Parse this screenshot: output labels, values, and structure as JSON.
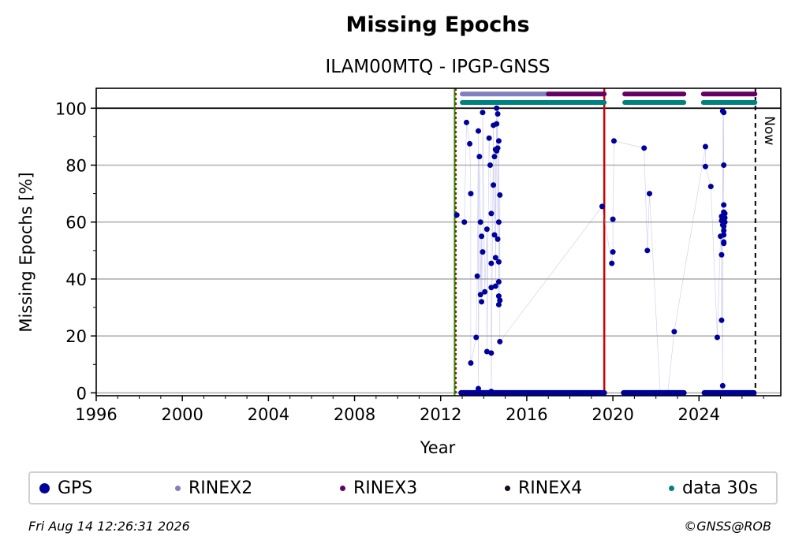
{
  "chart_data": {
    "type": "scatter",
    "title": "Missing Epochs",
    "subtitle": "ILAM00MTQ - IPGP-GNSS",
    "xlabel": "Year",
    "ylabel": "Missing Epochs [%]",
    "xlim": [
      1996,
      2027.8
    ],
    "ylim": [
      -1,
      107
    ],
    "x_ticks": [
      "1996",
      "2000",
      "2004",
      "2008",
      "2012",
      "2016",
      "2020",
      "2024"
    ],
    "y_ticks": [
      "0",
      "20",
      "40",
      "60",
      "80",
      "100"
    ],
    "grid": "horizontal",
    "legend_position": "below",
    "now_label": "Now",
    "now_x": 2026.62,
    "green_line_x": 2012.65,
    "red_line_x": 2019.6,
    "series": [
      {
        "name": "GPS",
        "color": "#00009b",
        "points": [
          [
            2012.75,
            62.5
          ],
          [
            2013.1,
            60
          ],
          [
            2013.2,
            95
          ],
          [
            2013.35,
            87.5
          ],
          [
            2013.4,
            70
          ],
          [
            2013.4,
            10.5
          ],
          [
            2013.65,
            19.5
          ],
          [
            2013.7,
            41
          ],
          [
            2013.75,
            92
          ],
          [
            2013.75,
            1.5
          ],
          [
            2013.8,
            83
          ],
          [
            2013.85,
            60
          ],
          [
            2013.85,
            34.5
          ],
          [
            2013.9,
            55
          ],
          [
            2013.9,
            32
          ],
          [
            2013.95,
            49.5
          ],
          [
            2013.95,
            98.5
          ],
          [
            2014.05,
            35.5
          ],
          [
            2014.15,
            57.5
          ],
          [
            2014.15,
            14.5
          ],
          [
            2014.25,
            89.5
          ],
          [
            2014.3,
            80
          ],
          [
            2014.35,
            63
          ],
          [
            2014.35,
            45.5
          ],
          [
            2014.35,
            37
          ],
          [
            2014.35,
            14
          ],
          [
            2014.35,
            0.5
          ],
          [
            2014.45,
            94
          ],
          [
            2014.45,
            73
          ],
          [
            2014.5,
            55.5
          ],
          [
            2014.5,
            83
          ],
          [
            2014.55,
            85.5
          ],
          [
            2014.55,
            47.5
          ],
          [
            2014.55,
            37.5
          ],
          [
            2014.6,
            100
          ],
          [
            2014.6,
            94.5
          ],
          [
            2014.6,
            85
          ],
          [
            2014.65,
            98
          ],
          [
            2014.65,
            86
          ],
          [
            2014.65,
            54
          ],
          [
            2014.7,
            88.5
          ],
          [
            2014.7,
            60
          ],
          [
            2014.7,
            46
          ],
          [
            2014.7,
            39
          ],
          [
            2014.7,
            34
          ],
          [
            2014.7,
            31
          ],
          [
            2014.75,
            69.5
          ],
          [
            2014.75,
            32.5
          ],
          [
            2014.75,
            18
          ],
          [
            2019.5,
            65.5
          ],
          [
            2019.95,
            45.5
          ],
          [
            2020.0,
            49.5
          ],
          [
            2020.0,
            61
          ],
          [
            2020.05,
            88.5
          ],
          [
            2021.45,
            86
          ],
          [
            2021.6,
            50
          ],
          [
            2021.7,
            70
          ],
          [
            2022.2,
            0
          ],
          [
            2022.55,
            0
          ],
          [
            2022.85,
            21.5
          ],
          [
            2024.3,
            86.5
          ],
          [
            2024.3,
            79.5
          ],
          [
            2024.55,
            72.5
          ],
          [
            2024.85,
            19.5
          ],
          [
            2025.0,
            55
          ],
          [
            2025.05,
            48.5
          ],
          [
            2025.05,
            25.5
          ],
          [
            2025.1,
            2.5
          ],
          [
            2025.1,
            99
          ],
          [
            2025.15,
            98.5
          ],
          [
            2025.15,
            80
          ],
          [
            2025.15,
            66
          ],
          [
            2025.15,
            63.5
          ],
          [
            2025.15,
            62
          ],
          [
            2025.15,
            61
          ],
          [
            2025.15,
            60
          ],
          [
            2025.15,
            58.5
          ],
          [
            2025.15,
            57
          ],
          [
            2025.15,
            55.5
          ],
          [
            2025.15,
            53
          ],
          [
            2025.15,
            52.5
          ],
          [
            2025.05,
            62
          ],
          [
            2025.05,
            60.5
          ],
          [
            2025.1,
            59
          ],
          [
            2025.2,
            63
          ],
          [
            2025.2,
            61.5
          ],
          [
            2025.2,
            60
          ]
        ],
        "zero_segments": [
          [
            2012.95,
            2019.6
          ],
          [
            2020.5,
            2023.3
          ],
          [
            2024.25,
            2026.55
          ]
        ]
      },
      {
        "name": "RINEX2",
        "color": "#8080bf",
        "y": 105,
        "segments": [
          [
            2013.0,
            2017.0
          ]
        ]
      },
      {
        "name": "RINEX3",
        "color": "#660066",
        "y": 105,
        "segments": [
          [
            2017.0,
            2019.6
          ],
          [
            2020.55,
            2023.3
          ],
          [
            2024.2,
            2026.6
          ]
        ]
      },
      {
        "name": "RINEX4",
        "color": "#1a0a1a",
        "y": 105,
        "segments": []
      },
      {
        "name": "data 30s",
        "color": "#008080",
        "y": 102,
        "segments": [
          [
            2013.0,
            2019.6
          ],
          [
            2020.55,
            2023.3
          ],
          [
            2024.2,
            2026.6
          ]
        ]
      }
    ]
  },
  "footer": {
    "date": "Fri Aug 14 12:26:31 2026",
    "credit": "©GNSS@ROB"
  }
}
